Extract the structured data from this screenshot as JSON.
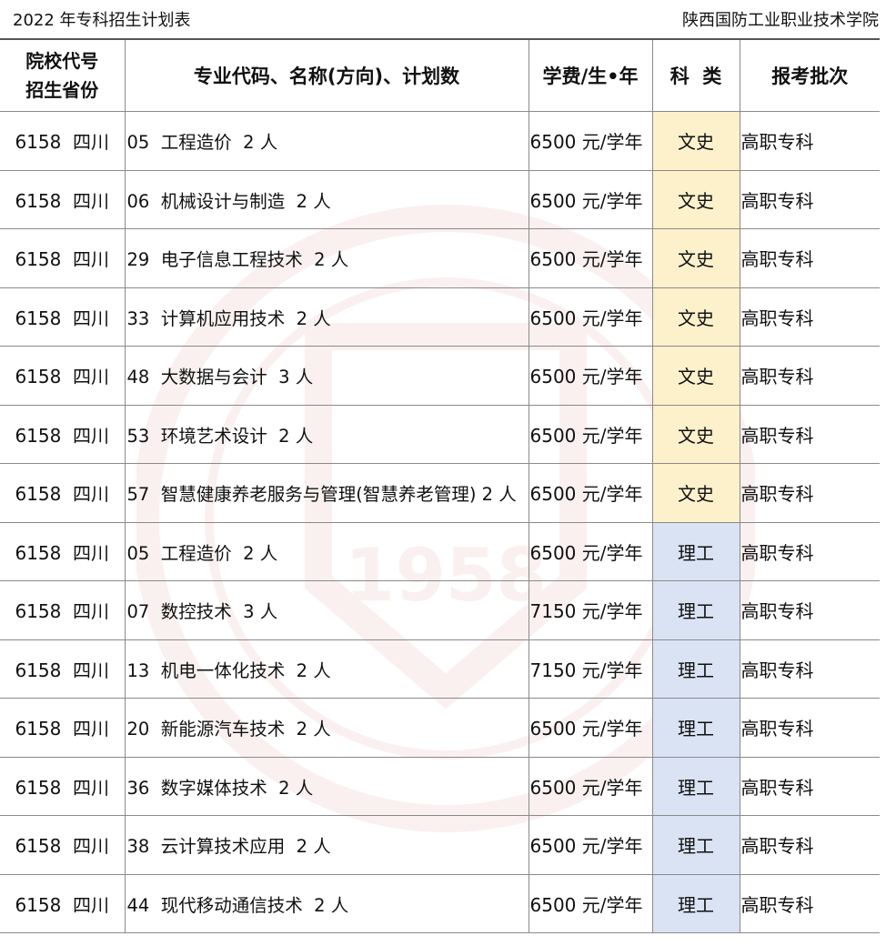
{
  "header_left": "2022 年专科招生计划表",
  "header_right": "陕西国防工业职业技术学院",
  "colors": {
    "wenshi_bg": "#fdf1cc",
    "ligong_bg": "#dae3f3"
  },
  "columns": {
    "col0_line1": "院校代号",
    "col0_line2": "招生省份",
    "col1": "专业代码、名称(方向)、计划数",
    "col2": "学费/生•年",
    "col3": "科  类",
    "col4": "报考批次"
  },
  "rows": [
    {
      "school": "6158  四川",
      "major": "05  工程造价  2 人",
      "fee": "6500 元/学年",
      "category": "文史",
      "batch": "高职专科"
    },
    {
      "school": "6158  四川",
      "major": "06  机械设计与制造  2 人",
      "fee": "6500 元/学年",
      "category": "文史",
      "batch": "高职专科"
    },
    {
      "school": "6158  四川",
      "major": "29  电子信息工程技术  2 人",
      "fee": "6500 元/学年",
      "category": "文史",
      "batch": "高职专科"
    },
    {
      "school": "6158  四川",
      "major": "33  计算机应用技术  2 人",
      "fee": "6500 元/学年",
      "category": "文史",
      "batch": "高职专科"
    },
    {
      "school": "6158  四川",
      "major": "48  大数据与会计  3 人",
      "fee": "6500 元/学年",
      "category": "文史",
      "batch": "高职专科"
    },
    {
      "school": "6158  四川",
      "major": "53  环境艺术设计  2 人",
      "fee": "6500 元/学年",
      "category": "文史",
      "batch": "高职专科"
    },
    {
      "school": "6158  四川",
      "major": "57  智慧健康养老服务与管理(智慧养老管理) 2 人",
      "fee": "6500 元/学年",
      "category": "文史",
      "batch": "高职专科"
    },
    {
      "school": "6158  四川",
      "major": "05  工程造价  2 人",
      "fee": "6500 元/学年",
      "category": "理工",
      "batch": "高职专科"
    },
    {
      "school": "6158  四川",
      "major": "07  数控技术  3 人",
      "fee": "7150 元/学年",
      "category": "理工",
      "batch": "高职专科"
    },
    {
      "school": "6158  四川",
      "major": "13  机电一体化技术  2 人",
      "fee": "7150 元/学年",
      "category": "理工",
      "batch": "高职专科"
    },
    {
      "school": "6158  四川",
      "major": "20  新能源汽车技术  2 人",
      "fee": "6500 元/学年",
      "category": "理工",
      "batch": "高职专科"
    },
    {
      "school": "6158  四川",
      "major": "36  数字媒体技术  2 人",
      "fee": "6500 元/学年",
      "category": "理工",
      "batch": "高职专科"
    },
    {
      "school": "6158  四川",
      "major": "38  云计算技术应用  2 人",
      "fee": "6500 元/学年",
      "category": "理工",
      "batch": "高职专科"
    },
    {
      "school": "6158  四川",
      "major": "44  现代移动通信技术  2 人",
      "fee": "6500 元/学年",
      "category": "理工",
      "batch": "高职专科"
    }
  ]
}
